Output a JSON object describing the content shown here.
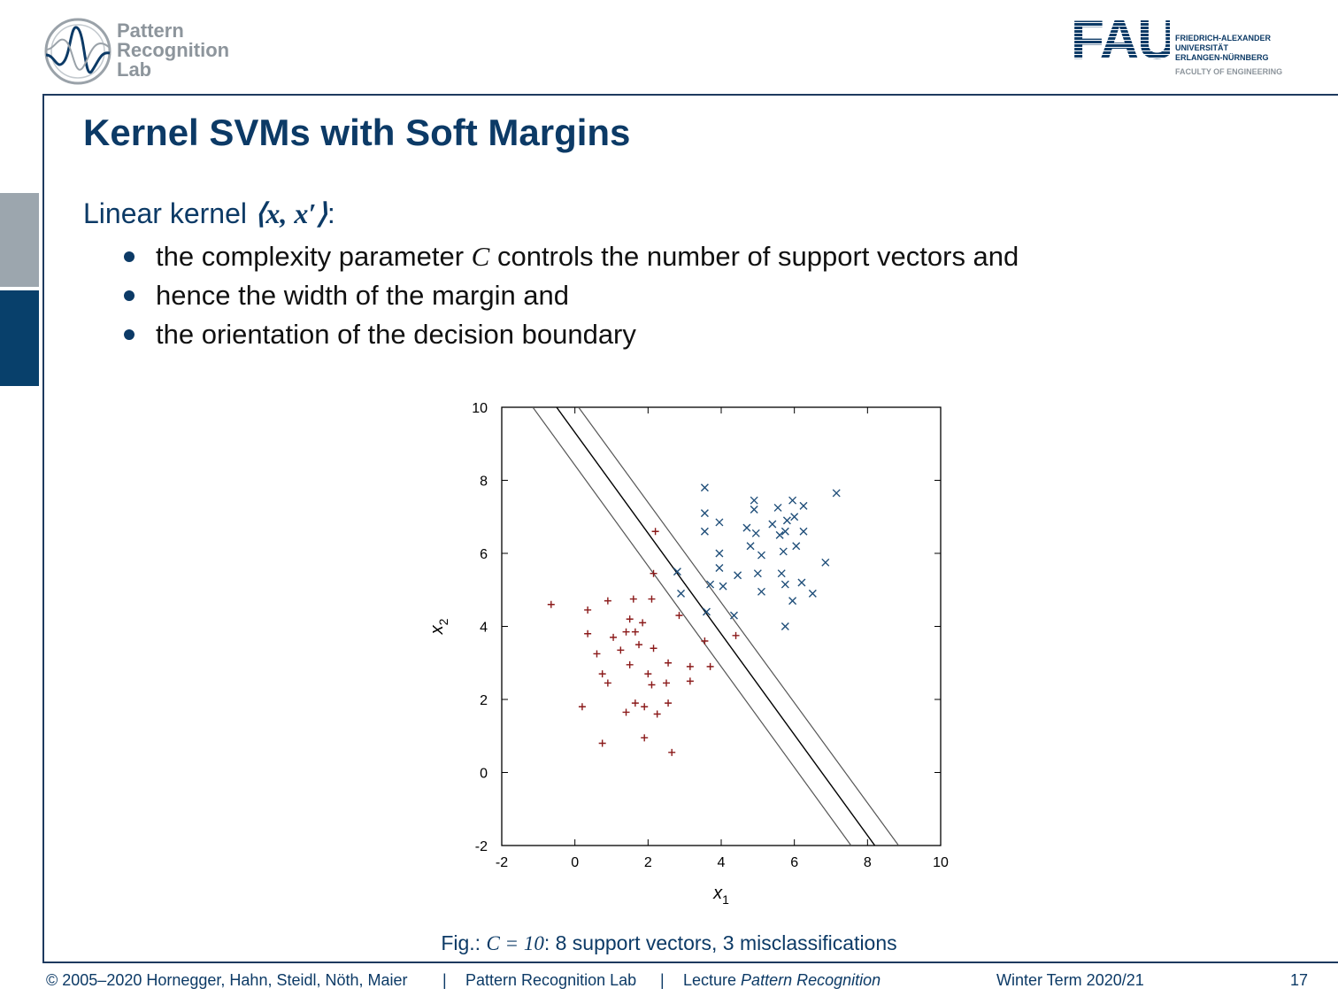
{
  "header": {
    "lab_logo_lines": [
      "Pattern",
      "Recognition",
      "Lab"
    ],
    "university_logo_letters": "FAU",
    "university_lines": [
      "FRIEDRICH-ALEXANDER",
      "UNIVERSITÄT",
      "ERLANGEN-NÜRNBERG"
    ],
    "faculty": "FACULTY OF ENGINEERING"
  },
  "slide": {
    "title": "Kernel SVMs with Soft Margins",
    "intro": "Linear kernel ⟨x, x′⟩:",
    "intro_text": "Linear kernel ",
    "intro_math": "⟨x, x′⟩",
    "intro_colon": ":",
    "bullets": [
      {
        "pre": "the complexity parameter ",
        "math": "C",
        "post": " controls the number of support vectors and"
      },
      {
        "pre": "hence the width of the margin and",
        "math": "",
        "post": ""
      },
      {
        "pre": "the orientation of the decision boundary",
        "math": "",
        "post": ""
      }
    ],
    "caption_pre": "Fig.: ",
    "caption_math": "C = 10",
    "caption_post": ": 8 support vectors, 3 misclassifications"
  },
  "chart_data": {
    "type": "scatter",
    "xlabel": "x1",
    "ylabel": "x2",
    "xlim": [
      -2,
      10
    ],
    "ylim": [
      -2,
      10
    ],
    "xticks": [
      -2,
      0,
      2,
      4,
      6,
      8,
      10
    ],
    "yticks": [
      -2,
      0,
      2,
      4,
      6,
      8,
      10
    ],
    "grid": false,
    "series": [
      {
        "marker": "plus",
        "color": "#8b1a1a",
        "points": [
          [
            -0.65,
            4.6
          ],
          [
            0.35,
            4.45
          ],
          [
            0.9,
            4.7
          ],
          [
            1.6,
            4.75
          ],
          [
            2.1,
            4.75
          ],
          [
            1.5,
            4.2
          ],
          [
            1.85,
            4.1
          ],
          [
            1.4,
            3.85
          ],
          [
            1.65,
            3.85
          ],
          [
            1.05,
            3.7
          ],
          [
            0.35,
            3.8
          ],
          [
            1.75,
            3.5
          ],
          [
            2.15,
            3.4
          ],
          [
            1.25,
            3.35
          ],
          [
            0.6,
            3.25
          ],
          [
            1.5,
            2.95
          ],
          [
            2.55,
            3.0
          ],
          [
            0.75,
            2.7
          ],
          [
            2.0,
            2.7
          ],
          [
            0.9,
            2.45
          ],
          [
            2.1,
            2.4
          ],
          [
            2.5,
            2.45
          ],
          [
            0.2,
            1.8
          ],
          [
            1.4,
            1.65
          ],
          [
            1.65,
            1.9
          ],
          [
            1.9,
            1.8
          ],
          [
            2.25,
            1.6
          ],
          [
            2.55,
            1.9
          ],
          [
            0.75,
            0.8
          ],
          [
            1.9,
            0.95
          ],
          [
            2.65,
            0.55
          ],
          [
            2.2,
            6.6
          ],
          [
            2.15,
            5.45
          ],
          [
            2.85,
            4.3
          ],
          [
            3.15,
            2.9
          ],
          [
            3.15,
            2.5
          ],
          [
            3.55,
            3.6
          ],
          [
            3.7,
            2.9
          ],
          [
            4.4,
            3.75
          ]
        ]
      },
      {
        "marker": "cross",
        "color": "#1f4e79",
        "points": [
          [
            3.55,
            7.8
          ],
          [
            3.55,
            7.1
          ],
          [
            3.55,
            6.6
          ],
          [
            3.95,
            6.85
          ],
          [
            4.9,
            7.45
          ],
          [
            4.9,
            7.2
          ],
          [
            5.55,
            7.25
          ],
          [
            5.95,
            7.45
          ],
          [
            6.25,
            7.3
          ],
          [
            7.15,
            7.65
          ],
          [
            5.8,
            6.9
          ],
          [
            6.0,
            7.0
          ],
          [
            5.4,
            6.8
          ],
          [
            4.7,
            6.7
          ],
          [
            4.95,
            6.55
          ],
          [
            5.6,
            6.5
          ],
          [
            5.75,
            6.6
          ],
          [
            6.25,
            6.6
          ],
          [
            4.8,
            6.2
          ],
          [
            6.05,
            6.2
          ],
          [
            3.95,
            6.0
          ],
          [
            5.1,
            5.95
          ],
          [
            5.7,
            6.05
          ],
          [
            6.85,
            5.75
          ],
          [
            3.95,
            5.6
          ],
          [
            4.45,
            5.4
          ],
          [
            5.0,
            5.45
          ],
          [
            5.65,
            5.45
          ],
          [
            2.8,
            5.5
          ],
          [
            3.7,
            5.15
          ],
          [
            4.05,
            5.1
          ],
          [
            5.75,
            5.15
          ],
          [
            6.2,
            5.2
          ],
          [
            2.9,
            4.9
          ],
          [
            5.1,
            4.95
          ],
          [
            6.5,
            4.9
          ],
          [
            5.95,
            4.7
          ],
          [
            3.6,
            4.4
          ],
          [
            4.35,
            4.3
          ],
          [
            5.75,
            4.0
          ]
        ]
      }
    ],
    "lines": [
      {
        "role": "decision-boundary",
        "from": [
          -0.5,
          10
        ],
        "to": [
          8.2,
          -2
        ]
      },
      {
        "role": "margin",
        "from": [
          -1.15,
          10
        ],
        "to": [
          7.55,
          -2
        ]
      },
      {
        "role": "margin",
        "from": [
          0.1,
          10
        ],
        "to": [
          8.85,
          -2
        ]
      }
    ]
  },
  "footer": {
    "copyright": "© 2005–2020 Hornegger, Hahn, Steidl, Nöth, Maier",
    "separator": "|",
    "lab": "Pattern Recognition Lab",
    "lecture_prefix": "Lecture ",
    "lecture_title": "Pattern Recognition",
    "term": "Winter Term 2020/21",
    "page": "17"
  }
}
